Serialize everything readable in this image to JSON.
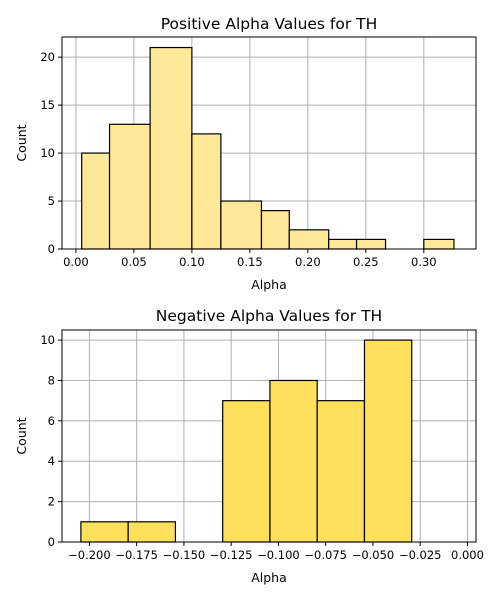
{
  "chart_data": [
    {
      "type": "bar",
      "title": "Positive Alpha Values for TH",
      "xlabel": "Alpha",
      "ylabel": "Count",
      "bar_color": "#ffe999",
      "edge_color": "#000000",
      "grid": true,
      "xlim": [
        -0.012,
        0.345
      ],
      "ylim": [
        0,
        22.1
      ],
      "xticks": [
        0.0,
        0.05,
        0.1,
        0.15,
        0.2,
        0.25,
        0.3
      ],
      "xtick_labels": [
        "0.00",
        "0.05",
        "0.10",
        "0.15",
        "0.20",
        "0.25",
        "0.30"
      ],
      "yticks": [
        0,
        5,
        10,
        15,
        20
      ],
      "ytick_labels": [
        "0",
        "5",
        "10",
        "15",
        "20"
      ],
      "bins": [
        {
          "x0": 0.005,
          "x1": 0.029,
          "count": 10
        },
        {
          "x0": 0.029,
          "x1": 0.064,
          "count": 13
        },
        {
          "x0": 0.064,
          "x1": 0.1,
          "count": 21
        },
        {
          "x0": 0.1,
          "x1": 0.125,
          "count": 12
        },
        {
          "x0": 0.125,
          "x1": 0.16,
          "count": 5
        },
        {
          "x0": 0.16,
          "x1": 0.184,
          "count": 4
        },
        {
          "x0": 0.184,
          "x1": 0.218,
          "count": 2
        },
        {
          "x0": 0.218,
          "x1": 0.242,
          "count": 1
        },
        {
          "x0": 0.242,
          "x1": 0.267,
          "count": 1
        },
        {
          "x0": 0.267,
          "x1": 0.3,
          "count": 0
        },
        {
          "x0": 0.3,
          "x1": 0.326,
          "count": 1
        }
      ]
    },
    {
      "type": "bar",
      "title": "Negative Alpha Values for TH",
      "xlabel": "Alpha",
      "ylabel": "Count",
      "bar_color": "#ffe05c",
      "edge_color": "#000000",
      "grid": true,
      "xlim": [
        -0.2145,
        0.0045
      ],
      "ylim": [
        0,
        10.5
      ],
      "xticks": [
        -0.2,
        -0.175,
        -0.15,
        -0.125,
        -0.1,
        -0.075,
        -0.05,
        -0.025,
        0.0
      ],
      "xtick_labels": [
        "−0.200",
        "−0.175",
        "−0.150",
        "−0.125",
        "−0.100",
        "−0.075",
        "−0.050",
        "−0.025",
        "0.000"
      ],
      "yticks": [
        0,
        2,
        4,
        6,
        8,
        10
      ],
      "ytick_labels": [
        "0",
        "2",
        "4",
        "6",
        "8",
        "10"
      ],
      "bins": [
        {
          "x0": -0.2045,
          "x1": -0.1795,
          "count": 1
        },
        {
          "x0": -0.1795,
          "x1": -0.1545,
          "count": 1
        },
        {
          "x0": -0.1545,
          "x1": -0.1295,
          "count": 0
        },
        {
          "x0": -0.1295,
          "x1": -0.1045,
          "count": 7
        },
        {
          "x0": -0.1045,
          "x1": -0.0795,
          "count": 8
        },
        {
          "x0": -0.0795,
          "x1": -0.0545,
          "count": 7
        },
        {
          "x0": -0.0545,
          "x1": -0.0295,
          "count": 10
        }
      ]
    }
  ]
}
